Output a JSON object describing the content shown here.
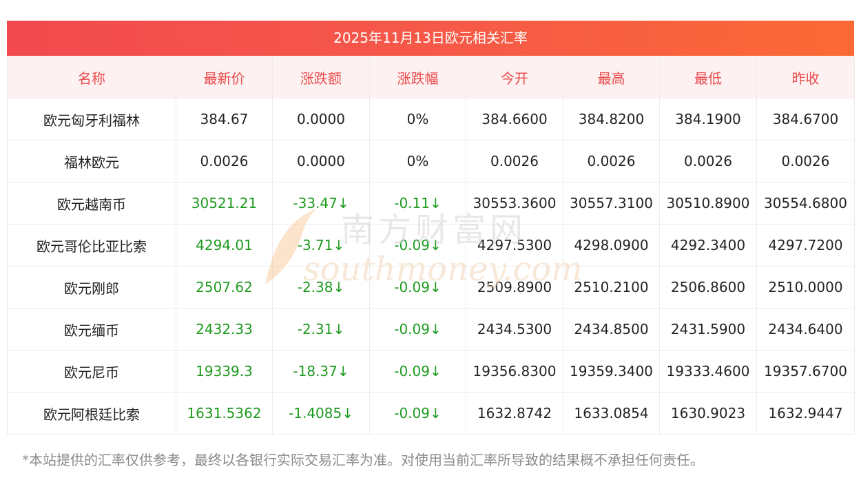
{
  "banner": {
    "title": "2025年11月13日欧元相关汇率"
  },
  "columns": [
    "名称",
    "最新价",
    "涨跌额",
    "涨跌幅",
    "今开",
    "最高",
    "最低",
    "昨收"
  ],
  "rows": [
    {
      "name": "欧元匈牙利福林",
      "latest": "384.67",
      "change": "0.0000",
      "pct": "0%",
      "open": "384.6600",
      "high": "384.8200",
      "low": "384.1900",
      "prev": "384.6700",
      "down": false
    },
    {
      "name": "福林欧元",
      "latest": "0.0026",
      "change": "0.0000",
      "pct": "0%",
      "open": "0.0026",
      "high": "0.0026",
      "low": "0.0026",
      "prev": "0.0026",
      "down": false
    },
    {
      "name": "欧元越南币",
      "latest": "30521.21",
      "change": "-33.47↓",
      "pct": "-0.11↓",
      "open": "30553.3600",
      "high": "30557.3100",
      "low": "30510.8900",
      "prev": "30554.6800",
      "down": true
    },
    {
      "name": "欧元哥伦比亚比索",
      "latest": "4294.01",
      "change": "-3.71↓",
      "pct": "-0.09↓",
      "open": "4297.5300",
      "high": "4298.0900",
      "low": "4292.3400",
      "prev": "4297.7200",
      "down": true
    },
    {
      "name": "欧元刚郎",
      "latest": "2507.62",
      "change": "-2.38↓",
      "pct": "-0.09↓",
      "open": "2509.8900",
      "high": "2510.2100",
      "low": "2506.8600",
      "prev": "2510.0000",
      "down": true
    },
    {
      "name": "欧元缅币",
      "latest": "2432.33",
      "change": "-2.31↓",
      "pct": "-0.09↓",
      "open": "2434.5300",
      "high": "2434.8500",
      "low": "2431.5900",
      "prev": "2434.6400",
      "down": true
    },
    {
      "name": "欧元尼币",
      "latest": "19339.3",
      "change": "-18.37↓",
      "pct": "-0.09↓",
      "open": "19356.8300",
      "high": "19359.3400",
      "low": "19333.4600",
      "prev": "19357.6700",
      "down": true
    },
    {
      "name": "欧元阿根廷比索",
      "latest": "1631.5362",
      "change": "-1.4085↓",
      "pct": "-0.09↓",
      "open": "1632.8742",
      "high": "1633.0854",
      "low": "1630.9023",
      "prev": "1632.9447",
      "down": true
    }
  ],
  "footer": {
    "note": "*本站提供的汇率仅供参考，最终以各银行实际交易汇率为准。对使用当前汇率所导致的结果概不承担任何责任。"
  },
  "watermark": {
    "cn": "南方财富网",
    "en": "southmoney.com"
  },
  "colors": {
    "banner_start": "#f24a4f",
    "banner_end": "#fb6a35",
    "header_text": "#ea4b4d",
    "header_bg": "#fdf2f1",
    "down": "#1d9a1d"
  }
}
